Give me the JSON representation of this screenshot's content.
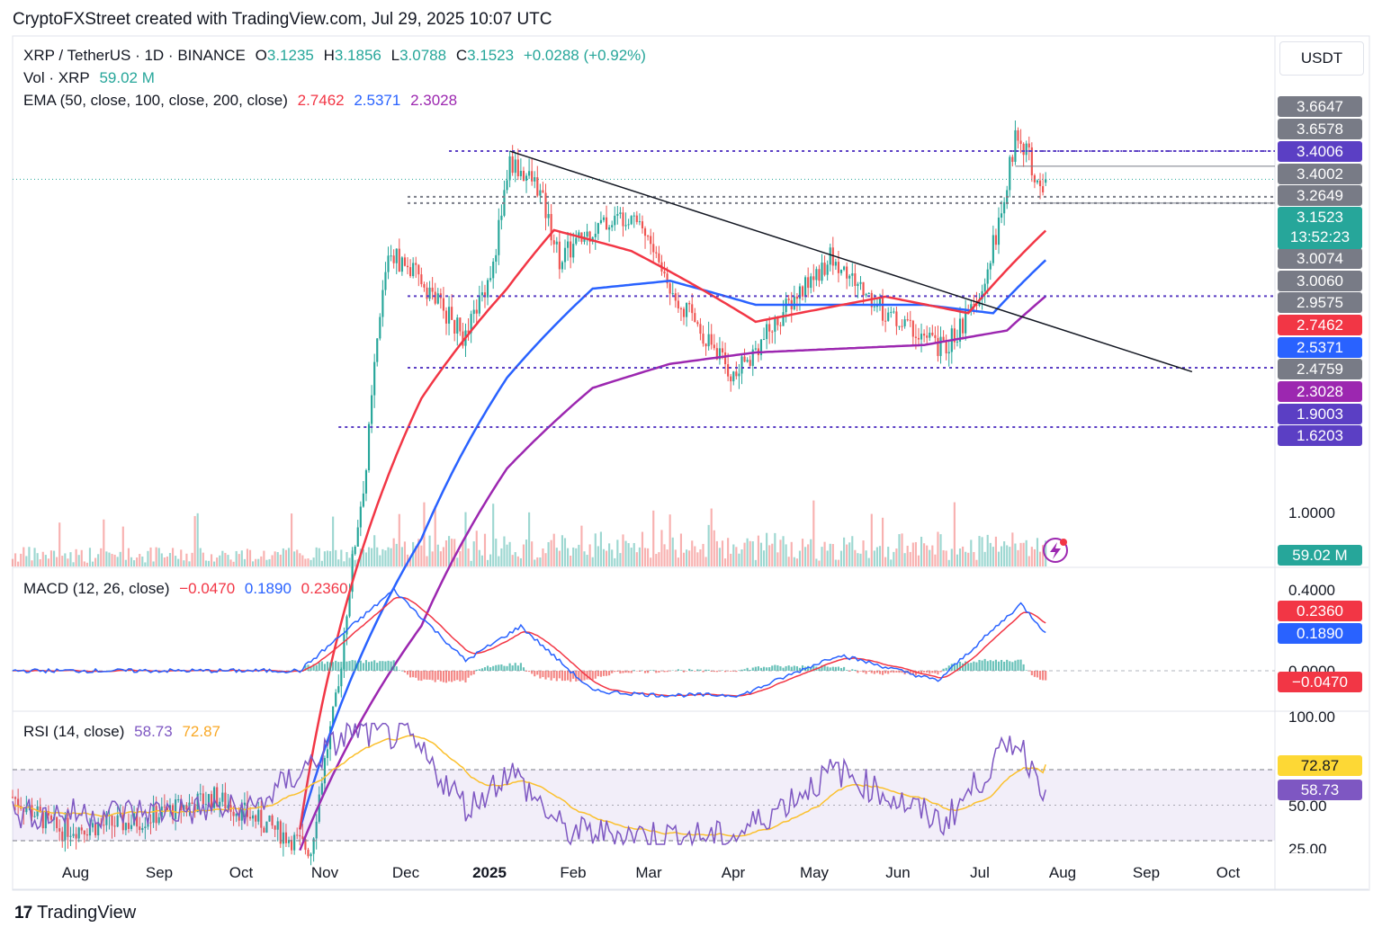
{
  "header": {
    "title": "CryptoFXStreet created with TradingView.com, Jul 29, 2025 10:07 UTC"
  },
  "footer": {
    "brand": "TradingView",
    "logo_glyph": "17"
  },
  "currency_button": "USDT",
  "legend": {
    "symbol": "XRP / TetherUS · 1D · BINANCE",
    "o_label": "O",
    "o": "3.1235",
    "h_label": "H",
    "h": "3.1856",
    "l_label": "L",
    "l": "3.0788",
    "c_label": "C",
    "c": "3.1523",
    "change": "+0.0288 (+0.92%)",
    "vol_label": "Vol · XRP",
    "vol": "59.02 M",
    "ema_label": "EMA (50, close, 100, close, 200, close)",
    "ema50": "2.7462",
    "ema100": "2.5371",
    "ema200": "2.3028",
    "macd_label": "MACD (12, 26, close)",
    "macd_hist": "−0.0470",
    "macd_line": "0.1890",
    "macd_signal": "0.2360",
    "rsi_label": "RSI (14, close)",
    "rsi": "58.73",
    "rsi_ma": "72.87"
  },
  "price_axis": {
    "current_price": "3.1523",
    "countdown": "13:52:23",
    "ticks": [
      "1.0000"
    ],
    "labels": [
      {
        "text": "3.6647",
        "color": "#787b86"
      },
      {
        "text": "3.6578",
        "color": "#787b86"
      },
      {
        "text": "3.4006",
        "color": "#5b3fc4"
      },
      {
        "text": "3.4002",
        "color": "#787b86"
      },
      {
        "text": "3.2649",
        "color": "#787b86"
      },
      {
        "text": "3.0074",
        "color": "#787b86"
      },
      {
        "text": "3.0060",
        "color": "#787b86"
      },
      {
        "text": "2.9575",
        "color": "#787b86"
      },
      {
        "text": "2.7462",
        "color": "#f23645"
      },
      {
        "text": "2.5371",
        "color": "#2962ff"
      },
      {
        "text": "2.4759",
        "color": "#787b86"
      },
      {
        "text": "2.3028",
        "color": "#9c27b0"
      },
      {
        "text": "1.9003",
        "color": "#5b3fc4"
      },
      {
        "text": "1.6203",
        "color": "#5b3fc4"
      }
    ],
    "volume_label": "59.02 M"
  },
  "macd_axis": {
    "ticks": [
      "0.4000",
      "0.0000"
    ],
    "signal": "0.2360",
    "macd": "0.1890",
    "hist": "−0.0470"
  },
  "rsi_axis": {
    "ticks": [
      "100.00",
      "50.00",
      "25.00"
    ],
    "rsi_ma": "72.87",
    "rsi": "58.73"
  },
  "time_axis": [
    "Aug",
    "Sep",
    "Oct",
    "Nov",
    "Dec",
    "2025",
    "Feb",
    "Mar",
    "Apr",
    "May",
    "Jun",
    "Jul",
    "Aug",
    "Sep",
    "Oct"
  ],
  "colors": {
    "up": "#26a69a",
    "down": "#ef5350",
    "ema50": "#f23645",
    "ema100": "#2962ff",
    "ema200": "#9c27b0",
    "level": "#5b3fc4",
    "rsi": "#7e57c2",
    "rsi_ma": "#fbc02d"
  },
  "chart_data": {
    "type": "candlestick",
    "symbol": "XRP / TetherUS",
    "timeframe": "1D",
    "x_range": [
      "2024-07-20",
      "2025-10-20"
    ],
    "y_scale": "log",
    "last_candle": {
      "date": "2025-07-29",
      "open": 3.1235,
      "high": 3.1856,
      "low": 3.0788,
      "close": 3.1523
    },
    "horizontal_levels": [
      3.4006,
      3.4002,
      3.0074,
      2.9575,
      2.3028,
      1.9003,
      1.6203
    ],
    "trendline": {
      "from": {
        "date": "2025-01-16",
        "price": 3.4
      },
      "to": {
        "date": "2025-09-20",
        "price": 1.88
      }
    },
    "price_keypoints": [
      {
        "date": "2024-07-20",
        "close": 0.6
      },
      {
        "date": "2024-08-05",
        "close": 0.55
      },
      {
        "date": "2024-09-01",
        "close": 0.56
      },
      {
        "date": "2024-10-01",
        "close": 0.6
      },
      {
        "date": "2024-11-05",
        "close": 0.52
      },
      {
        "date": "2024-11-15",
        "close": 0.8
      },
      {
        "date": "2024-11-25",
        "close": 1.45
      },
      {
        "date": "2024-12-03",
        "close": 2.6
      },
      {
        "date": "2024-12-15",
        "close": 2.4
      },
      {
        "date": "2024-12-31",
        "close": 2.05
      },
      {
        "date": "2025-01-10",
        "close": 2.5
      },
      {
        "date": "2025-01-16",
        "close": 3.3
      },
      {
        "date": "2025-01-26",
        "close": 3.1
      },
      {
        "date": "2025-02-03",
        "close": 2.55
      },
      {
        "date": "2025-02-15",
        "close": 2.75
      },
      {
        "date": "2025-03-02",
        "close": 2.9
      },
      {
        "date": "2025-03-15",
        "close": 2.35
      },
      {
        "date": "2025-04-07",
        "close": 1.85
      },
      {
        "date": "2025-04-20",
        "close": 2.1
      },
      {
        "date": "2025-05-12",
        "close": 2.55
      },
      {
        "date": "2025-06-01",
        "close": 2.2
      },
      {
        "date": "2025-06-22",
        "close": 2.0
      },
      {
        "date": "2025-07-05",
        "close": 2.25
      },
      {
        "date": "2025-07-14",
        "close": 2.95
      },
      {
        "date": "2025-07-18",
        "close": 3.55
      },
      {
        "date": "2025-07-23",
        "close": 3.4
      },
      {
        "date": "2025-07-25",
        "close": 3.05
      },
      {
        "date": "2025-07-29",
        "close": 3.1523
      }
    ],
    "ema50_keypoints": [
      {
        "date": "2024-11-01",
        "value": 0.55
      },
      {
        "date": "2024-12-15",
        "value": 1.75
      },
      {
        "date": "2025-01-15",
        "value": 2.35
      },
      {
        "date": "2025-02-01",
        "value": 2.75
      },
      {
        "date": "2025-03-01",
        "value": 2.6
      },
      {
        "date": "2025-04-15",
        "value": 2.15
      },
      {
        "date": "2025-06-01",
        "value": 2.3
      },
      {
        "date": "2025-07-01",
        "value": 2.2
      },
      {
        "date": "2025-07-29",
        "value": 2.7462
      }
    ],
    "ema100_keypoints": [
      {
        "date": "2024-11-01",
        "value": 0.55
      },
      {
        "date": "2024-12-15",
        "value": 1.2
      },
      {
        "date": "2025-01-15",
        "value": 1.85
      },
      {
        "date": "2025-02-15",
        "value": 2.35
      },
      {
        "date": "2025-03-15",
        "value": 2.4
      },
      {
        "date": "2025-04-15",
        "value": 2.25
      },
      {
        "date": "2025-06-15",
        "value": 2.25
      },
      {
        "date": "2025-07-10",
        "value": 2.2
      },
      {
        "date": "2025-07-29",
        "value": 2.5371
      }
    ],
    "ema200_keypoints": [
      {
        "date": "2024-11-01",
        "value": 0.52
      },
      {
        "date": "2024-12-15",
        "value": 0.95
      },
      {
        "date": "2025-01-15",
        "value": 1.45
      },
      {
        "date": "2025-02-15",
        "value": 1.8
      },
      {
        "date": "2025-03-15",
        "value": 1.92
      },
      {
        "date": "2025-04-15",
        "value": 1.98
      },
      {
        "date": "2025-06-15",
        "value": 2.02
      },
      {
        "date": "2025-07-15",
        "value": 2.1
      },
      {
        "date": "2025-07-29",
        "value": 2.3028
      }
    ],
    "volume_last": "59.02 M",
    "macd": {
      "params": "12, 26, close",
      "last": {
        "macd": 0.189,
        "signal": 0.236,
        "histogram": -0.047
      },
      "macd_keypoints": [
        {
          "date": "2024-11-01",
          "value": 0.0
        },
        {
          "date": "2024-12-05",
          "value": 0.4
        },
        {
          "date": "2024-12-31",
          "value": 0.05
        },
        {
          "date": "2025-01-20",
          "value": 0.22
        },
        {
          "date": "2025-02-15",
          "value": -0.1
        },
        {
          "date": "2025-03-10",
          "value": -0.12
        },
        {
          "date": "2025-04-10",
          "value": -0.12
        },
        {
          "date": "2025-05-15",
          "value": 0.08
        },
        {
          "date": "2025-06-20",
          "value": -0.05
        },
        {
          "date": "2025-07-20",
          "value": 0.33
        },
        {
          "date": "2025-07-29",
          "value": 0.189
        }
      ]
    },
    "rsi": {
      "params": "14, close",
      "last": {
        "rsi": 58.73,
        "rsi_ma": 72.87
      },
      "bands": [
        70,
        50,
        30
      ],
      "rsi_keypoints": [
        {
          "date": "2024-08-01",
          "value": 45
        },
        {
          "date": "2024-10-15",
          "value": 48
        },
        {
          "date": "2024-11-20",
          "value": 92
        },
        {
          "date": "2024-12-10",
          "value": 88
        },
        {
          "date": "2025-01-01",
          "value": 48
        },
        {
          "date": "2025-01-16",
          "value": 70
        },
        {
          "date": "2025-02-05",
          "value": 35
        },
        {
          "date": "2025-04-07",
          "value": 32
        },
        {
          "date": "2025-05-14",
          "value": 70
        },
        {
          "date": "2025-06-22",
          "value": 40
        },
        {
          "date": "2025-07-18",
          "value": 88
        },
        {
          "date": "2025-07-29",
          "value": 58.73
        }
      ]
    }
  }
}
